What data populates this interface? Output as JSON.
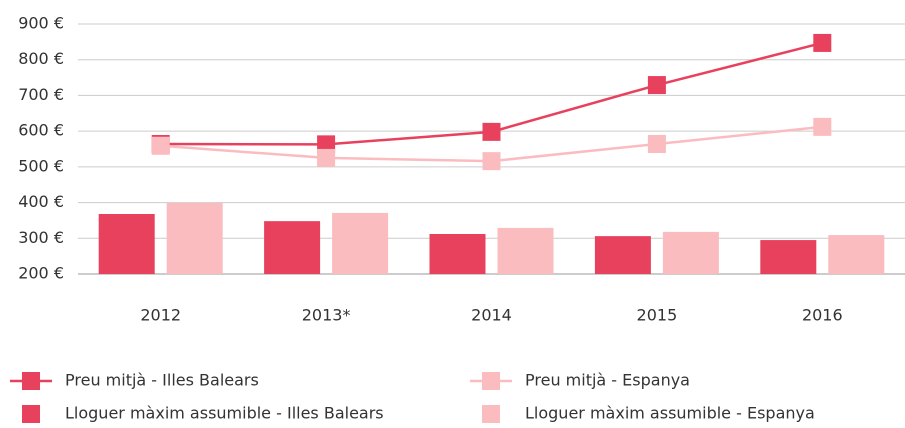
{
  "chart_data": {
    "type": "bar",
    "categories": [
      "2012",
      "2013*",
      "2014",
      "2015",
      "2016"
    ],
    "ylim": [
      200,
      900
    ],
    "yticks": [
      {
        "value": 200,
        "label": "200 €"
      },
      {
        "value": 300,
        "label": "300 €"
      },
      {
        "value": 400,
        "label": "400 €"
      },
      {
        "value": 500,
        "label": "500 €"
      },
      {
        "value": 600,
        "label": "600 €"
      },
      {
        "value": 700,
        "label": "700 €"
      },
      {
        "value": 800,
        "label": "800 €"
      },
      {
        "value": 900,
        "label": "900 €"
      }
    ],
    "grid": true,
    "series": [
      {
        "name": "Lloguer màxim assumible - Illes Balears",
        "type": "bar",
        "color": "#e8415e",
        "values": [
          368,
          348,
          312,
          306,
          295
        ]
      },
      {
        "name": "Lloguer màxim assumible - Espanya",
        "type": "bar",
        "color": "#fbbcc0",
        "values": [
          399,
          371,
          329,
          318,
          309
        ]
      },
      {
        "name": "Preu mitjà - Illes Balears",
        "type": "line",
        "color": "#e8415e",
        "values": [
          564,
          563,
          598,
          729,
          847
        ]
      },
      {
        "name": "Preu mitjà - Espanya",
        "type": "line",
        "color": "#fbbcc0",
        "values": [
          559,
          525,
          516,
          564,
          612
        ]
      }
    ]
  }
}
